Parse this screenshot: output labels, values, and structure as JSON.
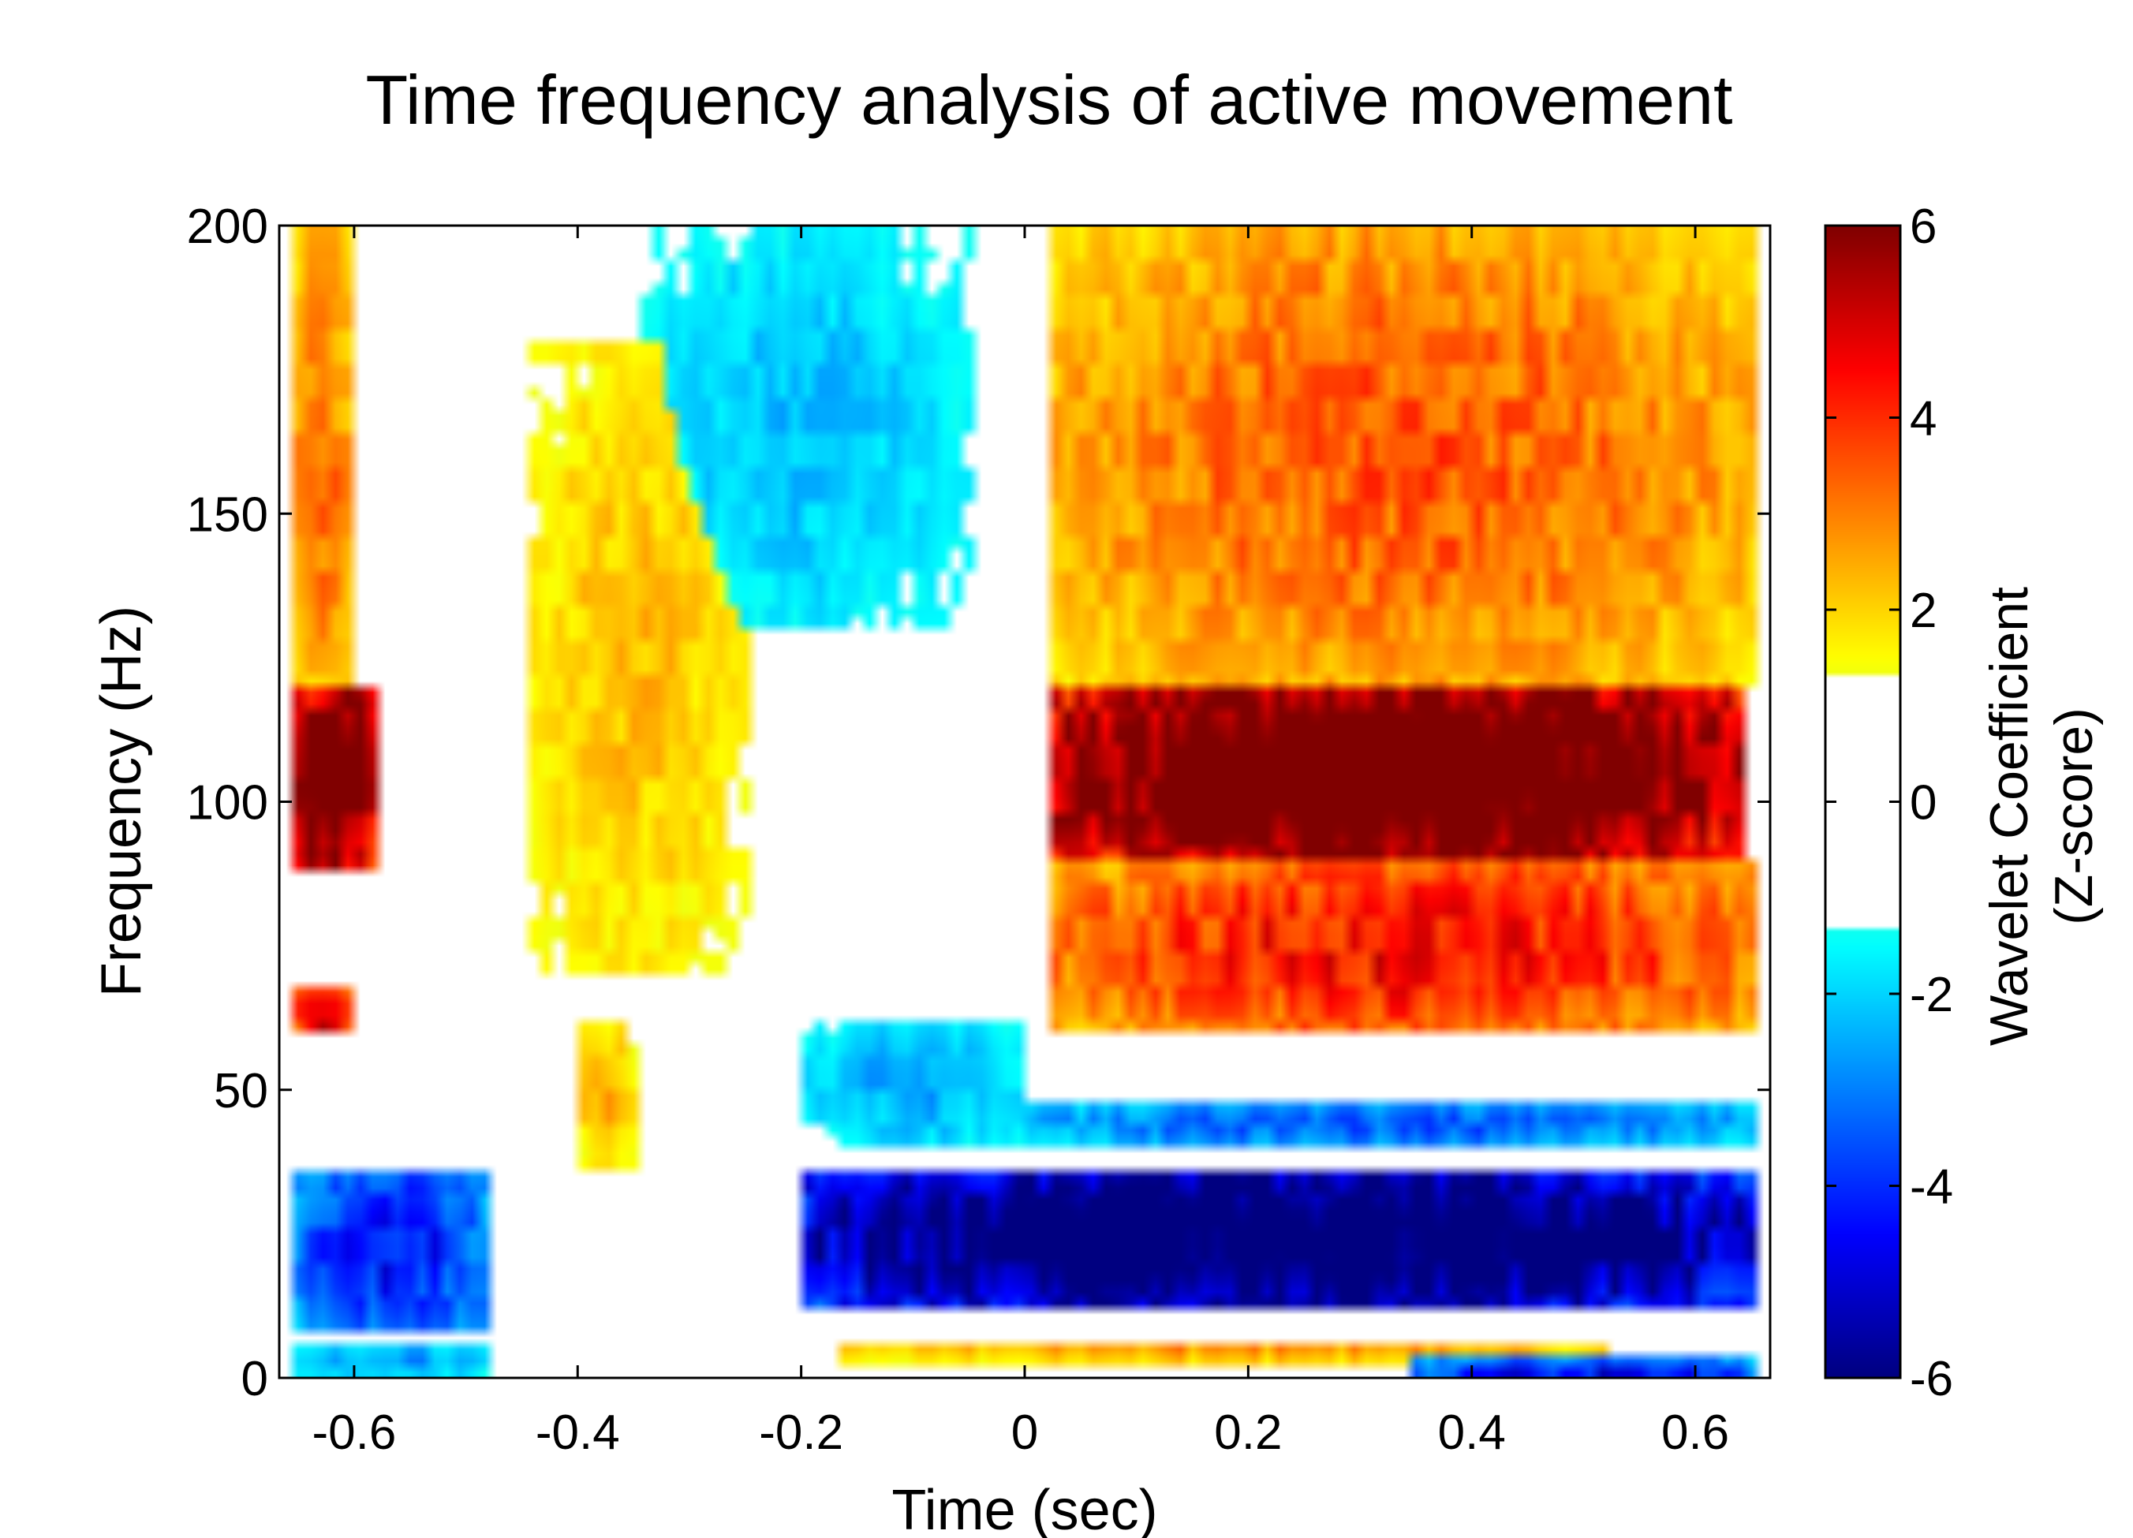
{
  "chart_data": {
    "type": "heatmap",
    "title": "Time frequency analysis of active movement",
    "xlabel": "Time (sec)",
    "ylabel": "Frequency (Hz)",
    "colorbar_label": [
      "Wavelet Coefficient",
      "(Z-score)"
    ],
    "xlim": [
      -0.667,
      0.667
    ],
    "ylim": [
      0,
      200
    ],
    "xticks": [
      -0.6,
      -0.4,
      -0.2,
      0,
      0.2,
      0.4,
      0.6
    ],
    "xtick_labels": [
      "-0.6",
      "-0.4",
      "-0.2",
      "0",
      "0.2",
      "0.4",
      "0.6"
    ],
    "yticks": [
      0,
      50,
      100,
      150,
      200
    ],
    "ytick_labels": [
      "0",
      "50",
      "100",
      "150",
      "200"
    ],
    "clim": [
      -6,
      6
    ],
    "colorbar_ticks": [
      -6,
      -4,
      -2,
      0,
      2,
      4,
      6
    ],
    "colorbar_tick_labels": [
      "-6",
      "-4",
      "-2",
      "0",
      "2",
      "4",
      "6"
    ],
    "threshold": 1.3,
    "colormap": "jet",
    "grid": false,
    "regions": [
      {
        "t": [
          0.02,
          0.64
        ],
        "f": [
          90,
          120
        ],
        "z": 6.5
      },
      {
        "t": [
          0.02,
          0.66
        ],
        "f": [
          60,
          90
        ],
        "z": 3.6
      },
      {
        "t": [
          0.02,
          0.66
        ],
        "f": [
          120,
          200
        ],
        "z": 2.8
      },
      {
        "t": [
          -0.66,
          -0.58
        ],
        "f": [
          88,
          120
        ],
        "z": 5.8
      },
      {
        "t": [
          -0.66,
          -0.6
        ],
        "f": [
          60,
          68
        ],
        "z": 4.5
      },
      {
        "t": [
          -0.66,
          -0.6
        ],
        "f": [
          120,
          200
        ],
        "z": 2.6
      },
      {
        "t": [
          -0.2,
          0.66
        ],
        "f": [
          12,
          36
        ],
        "z": -6.0
      },
      {
        "t": [
          0.0,
          0.66
        ],
        "f": [
          40,
          48
        ],
        "z": -2.8
      },
      {
        "t": [
          -0.66,
          -0.48
        ],
        "f": [
          8,
          36
        ],
        "z": -3.6
      },
      {
        "t": [
          -0.66,
          -0.48
        ],
        "f": [
          0,
          6
        ],
        "z": -2.2
      },
      {
        "t": [
          -0.17,
          0.52
        ],
        "f": [
          3,
          6
        ],
        "z": 2.3
      },
      {
        "t": [
          0.34,
          0.66
        ],
        "f": [
          0,
          3
        ],
        "z": -3.8
      },
      {
        "t": [
          -0.4,
          -0.35
        ],
        "f": [
          36,
          62
        ],
        "z": 2.0
      },
      {
        "t": [
          -0.2,
          0.0
        ],
        "f": [
          40,
          62
        ],
        "z": -2.0
      },
      {
        "t": [
          -0.35,
          -0.05
        ],
        "f": [
          130,
          200
        ],
        "z": -1.8
      },
      {
        "t": [
          -0.45,
          -0.25
        ],
        "f": [
          70,
          180
        ],
        "z": 1.8
      }
    ]
  }
}
